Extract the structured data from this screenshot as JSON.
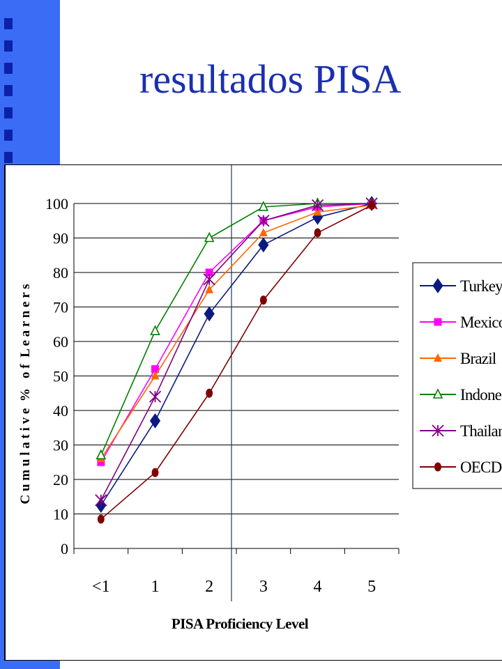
{
  "slide": {
    "title": "resultados PISA",
    "accent_color": "#3b6cf5",
    "bullet_color": "#0b22a8",
    "title_color": "#1a2fb0"
  },
  "chart_data": {
    "type": "line",
    "title": "",
    "xlabel": "PISA Proficiency Level",
    "ylabel": "C u m u l a t i v e  %   o f  L e a r n e r s",
    "categories": [
      "<1",
      "1",
      "2",
      "3",
      "4",
      "5"
    ],
    "ylim": [
      0,
      100
    ],
    "yticks": [
      0,
      10,
      20,
      30,
      40,
      50,
      60,
      70,
      80,
      90,
      100
    ],
    "grid": true,
    "legend_position": "right",
    "series": [
      {
        "name": "Turkey",
        "color": "#0a1a80",
        "marker": "diamond",
        "values": [
          12.5,
          37,
          68,
          88,
          96,
          100
        ]
      },
      {
        "name": "Mexico",
        "color": "#ff00ff",
        "marker": "square",
        "values": [
          25,
          52,
          80,
          95,
          99,
          100
        ]
      },
      {
        "name": "Brazil",
        "color": "#ff6600",
        "marker": "triangle",
        "values": [
          26,
          50,
          75,
          91.5,
          97.5,
          99.5
        ]
      },
      {
        "name": "Indonesia",
        "legend_label": "Indones:",
        "color": "#008000",
        "marker": "triangle-open",
        "values": [
          27,
          63,
          90,
          99,
          100,
          100
        ]
      },
      {
        "name": "Thailand",
        "color": "#800080",
        "marker": "star",
        "values": [
          14,
          44,
          78,
          95,
          99.5,
          100
        ]
      },
      {
        "name": "OECD total",
        "legend_label": "OECD to",
        "color": "#800000",
        "marker": "circle",
        "values": [
          8.5,
          22,
          45,
          72,
          91.5,
          99.5
        ]
      }
    ]
  }
}
